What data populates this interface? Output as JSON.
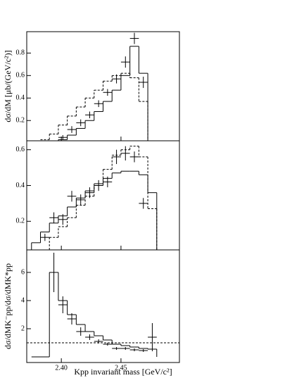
{
  "chart_data": [
    {
      "type": "histogram",
      "ylabel": "dσ/dM [μb/(GeV/c²)]",
      "bins": [
        2.375,
        2.3825,
        2.39,
        2.3975,
        2.405,
        2.4125,
        2.42,
        2.4275,
        2.435,
        2.4425,
        2.45,
        2.4575,
        2.465,
        2.4725,
        2.48
      ],
      "xlim": [
        2.371,
        2.499
      ],
      "ylim": [
        0.02,
        0.99
      ],
      "yticks": [
        0.2,
        0.4,
        0.6,
        0.8
      ],
      "series": [
        {
          "style": "solid",
          "color": "#000000",
          "values": [
            0,
            0,
            0,
            0.03,
            0.07,
            0.13,
            0.2,
            0.28,
            0.37,
            0.47,
            0.6,
            0.86,
            0.62,
            0
          ]
        },
        {
          "style": "dashed",
          "color": "#000000",
          "values": [
            0,
            0.03,
            0.08,
            0.16,
            0.24,
            0.32,
            0.4,
            0.47,
            0.55,
            0.6,
            0.62,
            0.58,
            0.37,
            0
          ]
        }
      ],
      "points": {
        "x": [
          2.40125,
          2.40875,
          2.41625,
          2.42375,
          2.43125,
          2.43875,
          2.44625,
          2.45375,
          2.46125,
          2.46875
        ],
        "values": [
          0.05,
          0.12,
          0.18,
          0.25,
          0.35,
          0.45,
          0.57,
          0.72,
          0.93,
          0.54
        ],
        "errors": [
          0.02,
          0.03,
          0.03,
          0.03,
          0.03,
          0.03,
          0.04,
          0.05,
          0.05,
          0.05
        ]
      }
    },
    {
      "type": "histogram",
      "bins": [
        2.375,
        2.3825,
        2.39,
        2.3975,
        2.405,
        2.4125,
        2.42,
        2.4275,
        2.435,
        2.4425,
        2.45,
        2.4575,
        2.465,
        2.4725,
        2.48
      ],
      "xlim": [
        2.371,
        2.499
      ],
      "ylim": [
        0.04,
        0.65
      ],
      "yticks": [
        0.2,
        0.4,
        0.6
      ],
      "series": [
        {
          "style": "solid",
          "color": "#000000",
          "values": [
            0.08,
            0.14,
            0.19,
            0.23,
            0.28,
            0.33,
            0.37,
            0.41,
            0.44,
            0.47,
            0.48,
            0.48,
            0.46,
            0.36
          ]
        },
        {
          "style": "dashed",
          "color": "#000000",
          "values": [
            0.04,
            0.04,
            0.11,
            0.17,
            0.22,
            0.29,
            0.34,
            0.4,
            0.49,
            0.57,
            0.6,
            0.62,
            0.56,
            0.27
          ]
        }
      ],
      "points": {
        "x": [
          2.38625,
          2.39375,
          2.40125,
          2.40875,
          2.41625,
          2.42375,
          2.43125,
          2.43875,
          2.44625,
          2.45375,
          2.46125,
          2.46875
        ],
        "values": [
          0.11,
          0.22,
          0.21,
          0.34,
          0.32,
          0.36,
          0.4,
          0.42,
          0.56,
          0.58,
          0.56,
          0.3
        ],
        "errors": [
          0.02,
          0.03,
          0.03,
          0.03,
          0.03,
          0.03,
          0.03,
          0.03,
          0.04,
          0.04,
          0.03,
          0.03
        ]
      }
    },
    {
      "type": "histogram",
      "ylabel": "dσ/dMK⁻pp/dσ/dMK*pp",
      "xlabel": "Kpp invariant mass [GeV/c²]",
      "bins": [
        2.375,
        2.3825,
        2.39,
        2.3975,
        2.405,
        2.4125,
        2.42,
        2.4275,
        2.435,
        2.4425,
        2.45,
        2.4575,
        2.465,
        2.4725,
        2.48
      ],
      "xlim": [
        2.371,
        2.499
      ],
      "ylim": [
        -0.4,
        7.6
      ],
      "yticks": [
        2,
        4,
        6
      ],
      "xticks": [
        {
          "value": 2.4,
          "label": "2.40"
        },
        {
          "value": 2.45,
          "label": "2.45"
        }
      ],
      "hline": 1,
      "series": [
        {
          "style": "solid",
          "color": "#000000",
          "values": [
            0,
            0,
            6.0,
            4.0,
            3.0,
            2.3,
            1.8,
            1.5,
            1.2,
            0.9,
            0.8,
            0.7,
            0.6,
            0.55
          ]
        }
      ],
      "points": {
        "x": [
          2.39375,
          2.40125,
          2.40875,
          2.41625,
          2.42375,
          2.43125,
          2.43875,
          2.44625,
          2.45375,
          2.46125,
          2.46875,
          2.47625
        ],
        "values": [
          6,
          3.7,
          2.7,
          1.8,
          1.4,
          1.1,
          0.9,
          0.6,
          0.6,
          0.5,
          0.45,
          1.4
        ],
        "errors": [
          1.4,
          0.6,
          0.4,
          0.3,
          0.2,
          0.15,
          0.1,
          0.1,
          0.1,
          0.1,
          0.1,
          1.0
        ]
      }
    }
  ]
}
